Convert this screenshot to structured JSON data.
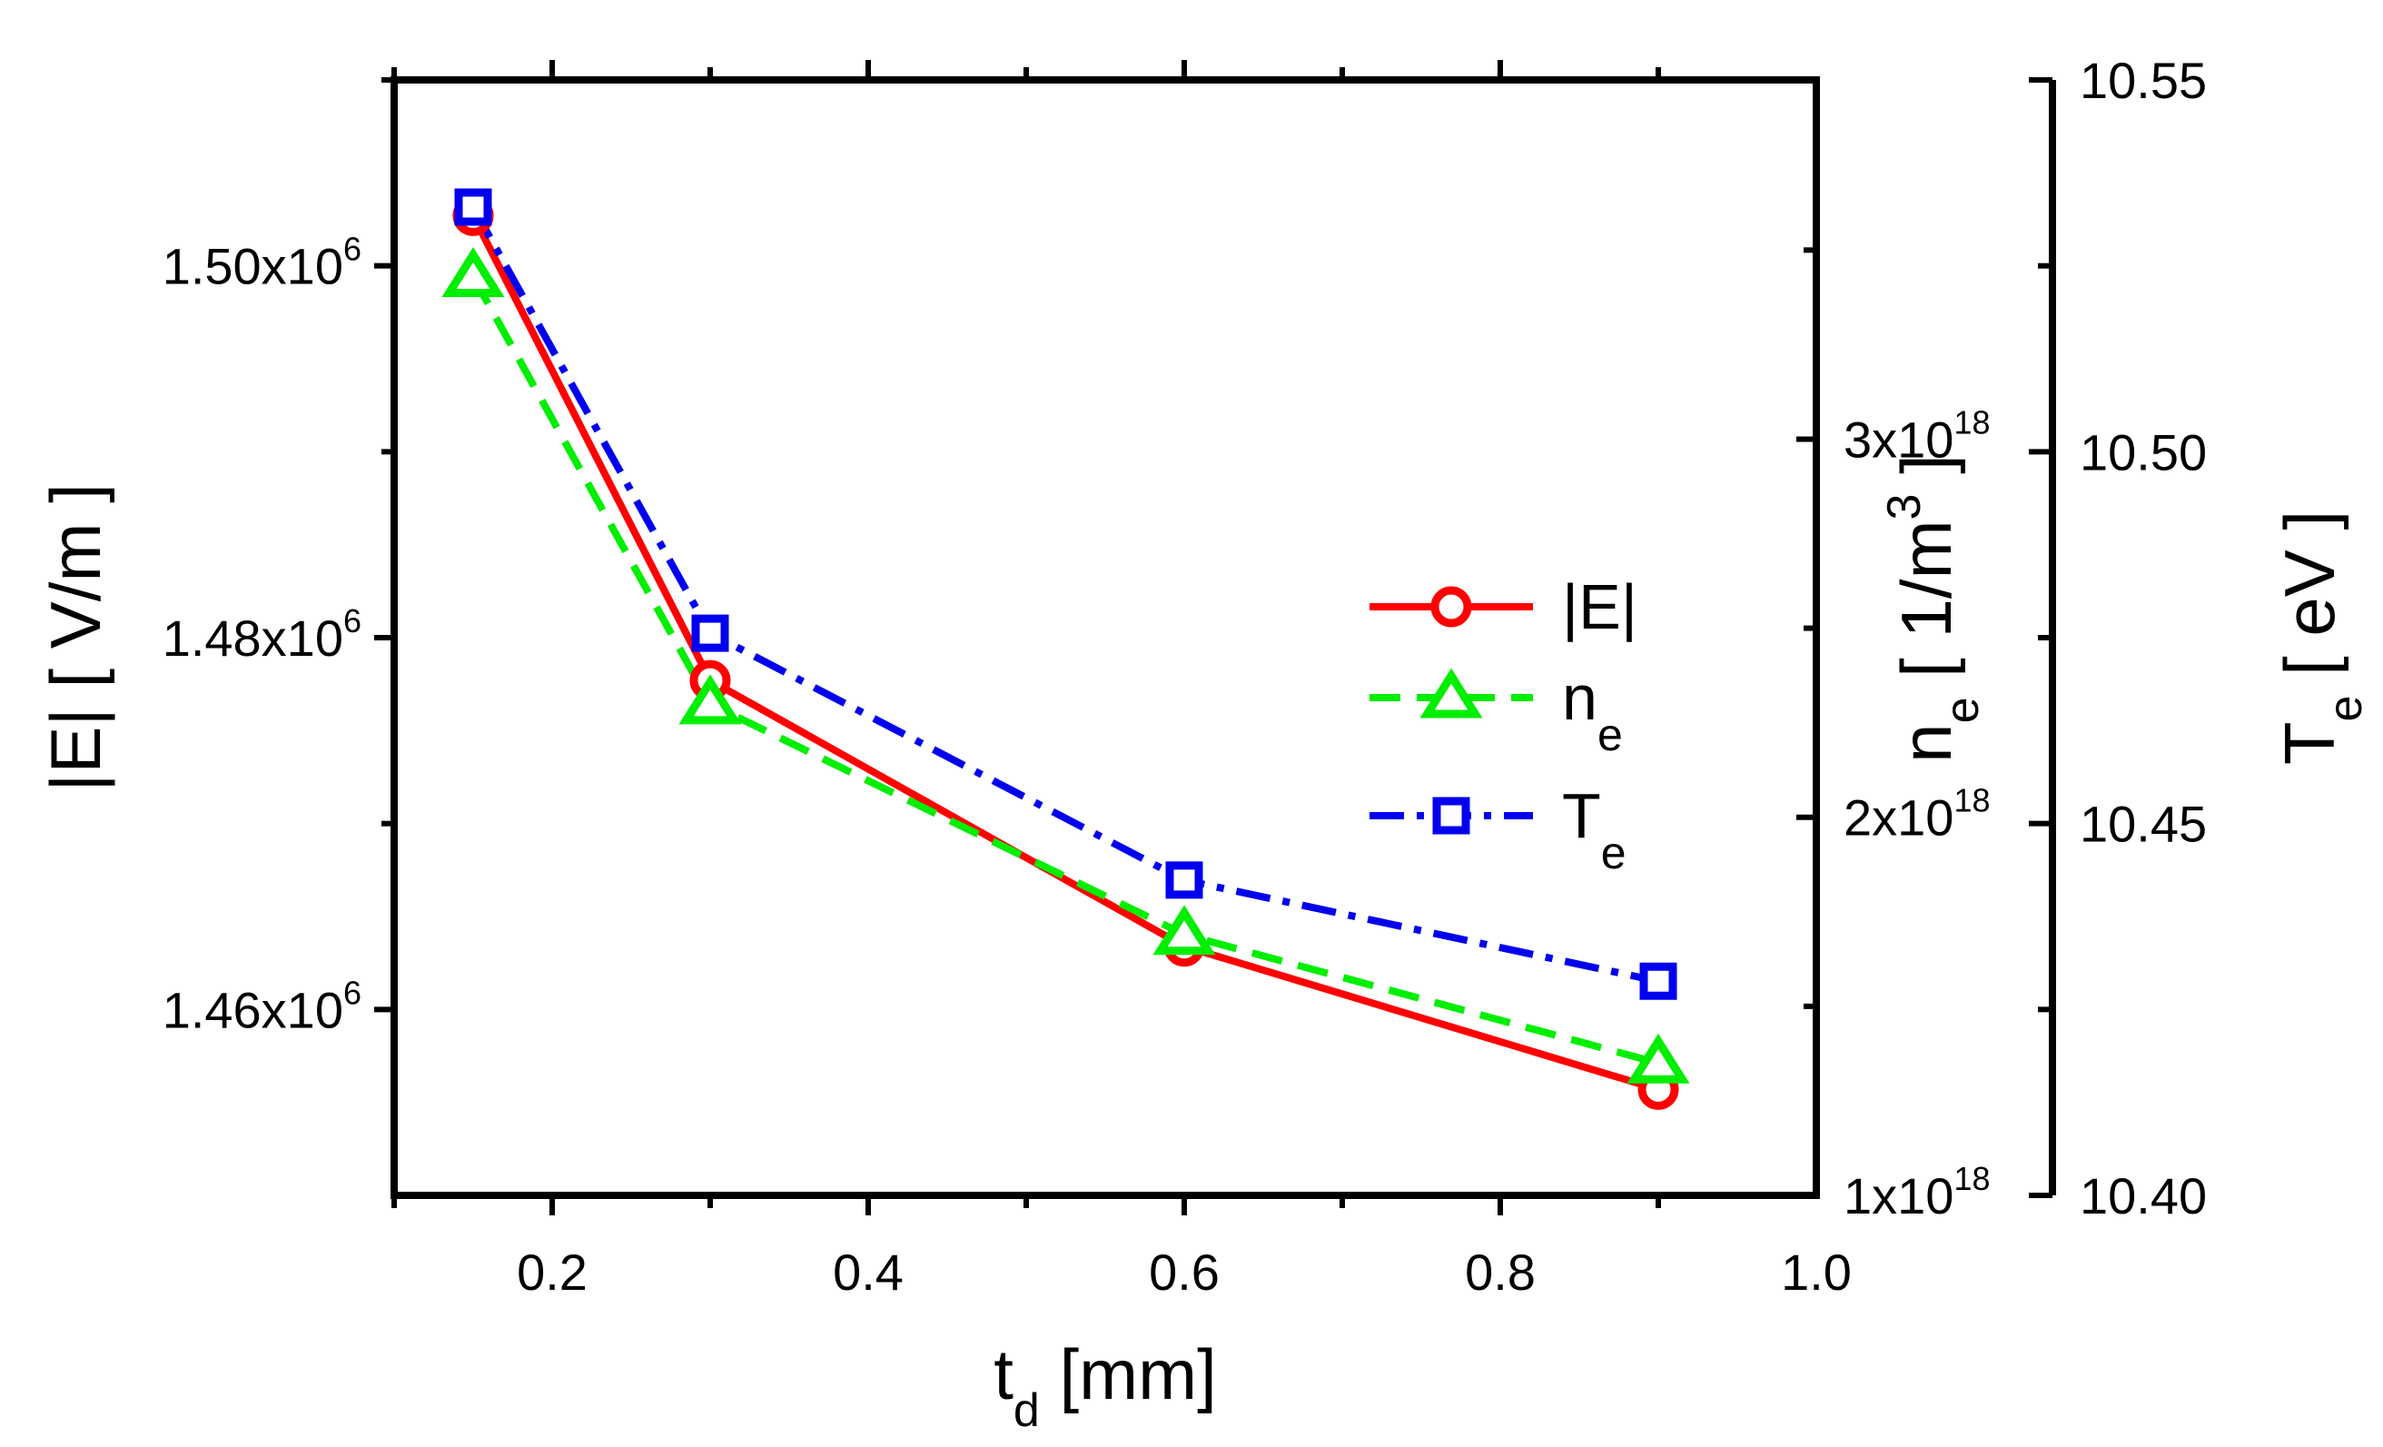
{
  "chart_data": {
    "type": "line",
    "x": [
      0.15,
      0.3,
      0.6,
      0.9
    ],
    "xlabel": {
      "base": "t",
      "sub": "d",
      "rest": " [mm]"
    },
    "xlim": [
      0.1,
      1.0
    ],
    "xticks": [
      "0.2",
      "0.4",
      "0.6",
      "0.8",
      "1.0"
    ],
    "axes": {
      "E": {
        "lim": [
          1450000.0,
          1510000.0
        ],
        "ticks": [
          {
            "value": 1460000.0,
            "mant": "1.46x10",
            "exp": "6"
          },
          {
            "value": 1480000.0,
            "mant": "1.48x10",
            "exp": "6"
          },
          {
            "value": 1500000.0,
            "mant": "1.50x10",
            "exp": "6"
          }
        ],
        "label": "|E| [ V/m ]"
      },
      "ne": {
        "lim": [
          1e+18,
          3.95e+18
        ],
        "ticks": [
          {
            "value": 1e+18,
            "mant": "1x10",
            "exp": "18"
          },
          {
            "value": 2e+18,
            "mant": "2x10",
            "exp": "18"
          },
          {
            "value": 3e+18,
            "mant": "3x10",
            "exp": "18"
          }
        ],
        "label": {
          "base": "n",
          "sub": "e",
          "rest": " [ 1/m",
          "sup": "3",
          "end": " ]"
        }
      },
      "Te": {
        "lim": [
          10.4,
          10.55
        ],
        "ticks": [
          "10.40",
          "10.45",
          "10.50",
          "10.55"
        ],
        "label": {
          "base": "T",
          "sub": "e",
          "rest": " [ eV ]"
        }
      }
    },
    "series": [
      {
        "name": "|E|",
        "axis": "E",
        "values": [
          1502700.0,
          1477700.0,
          1463400.0,
          1455700.0
        ],
        "color": "#ff0000",
        "marker": "circle",
        "dash": ""
      },
      {
        "name": "n_e",
        "axis": "ne",
        "values": [
          3.43e+18,
          2.3e+18,
          1.69e+18,
          1.35e+18
        ],
        "color": "#00ee00",
        "marker": "triangle",
        "dash": "34 18"
      },
      {
        "name": "T_e",
        "axis": "Te",
        "values": [
          10.5329,
          10.4756,
          10.4424,
          10.4288
        ],
        "color": "#0000ee",
        "marker": "square",
        "dash": "38 14 8 14"
      }
    ],
    "legend": {
      "position": "center-right",
      "items": [
        {
          "base": "|E|",
          "sub": ""
        },
        {
          "base": "n",
          "sub": "e"
        },
        {
          "base": "T",
          "sub": "e"
        }
      ]
    }
  }
}
